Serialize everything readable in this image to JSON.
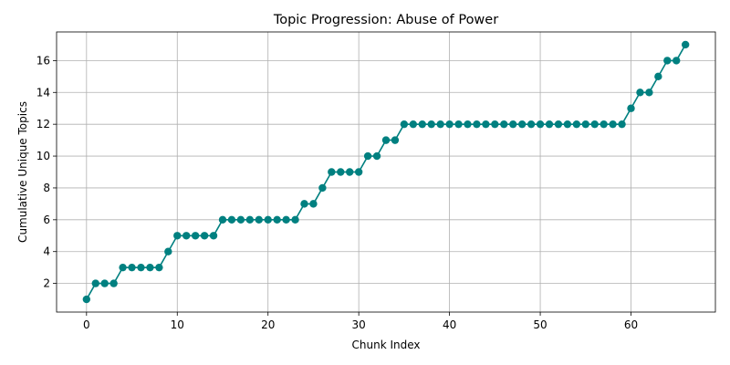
{
  "chart_data": {
    "type": "line",
    "title": "Topic Progression: Abuse of Power",
    "xlabel": "Chunk Index",
    "ylabel": "Cumulative Unique Topics",
    "xlim": [
      -3.3,
      69.3
    ],
    "ylim": [
      0.2,
      17.8
    ],
    "xticks": [
      0,
      10,
      20,
      30,
      40,
      50,
      60
    ],
    "yticks": [
      2,
      4,
      6,
      8,
      10,
      12,
      14,
      16
    ],
    "grid": true,
    "color": "#008080",
    "marker": "circle",
    "series": [
      {
        "x": [
          0,
          1,
          2,
          3,
          4,
          5,
          6,
          7,
          8,
          9,
          10,
          11,
          12,
          13,
          14,
          15,
          16,
          17,
          18,
          19,
          20,
          21,
          22,
          23,
          24,
          25,
          26,
          27,
          28,
          29,
          30,
          31,
          32,
          33,
          34,
          35,
          36,
          37,
          38,
          39,
          40,
          41,
          42,
          43,
          44,
          45,
          46,
          47,
          48,
          49,
          50,
          51,
          52,
          53,
          54,
          55,
          56,
          57,
          58,
          59,
          60,
          61,
          62,
          63,
          64,
          65,
          66
        ],
        "y": [
          1,
          2,
          2,
          2,
          3,
          3,
          3,
          3,
          3,
          4,
          5,
          5,
          5,
          5,
          5,
          6,
          6,
          6,
          6,
          6,
          6,
          6,
          6,
          6,
          7,
          7,
          8,
          9,
          9,
          9,
          9,
          10,
          10,
          11,
          11,
          12,
          12,
          12,
          12,
          12,
          12,
          12,
          12,
          12,
          12,
          12,
          12,
          12,
          12,
          12,
          12,
          12,
          12,
          12,
          12,
          12,
          12,
          12,
          12,
          12,
          13,
          14,
          14,
          15,
          16,
          16,
          17
        ]
      }
    ]
  }
}
